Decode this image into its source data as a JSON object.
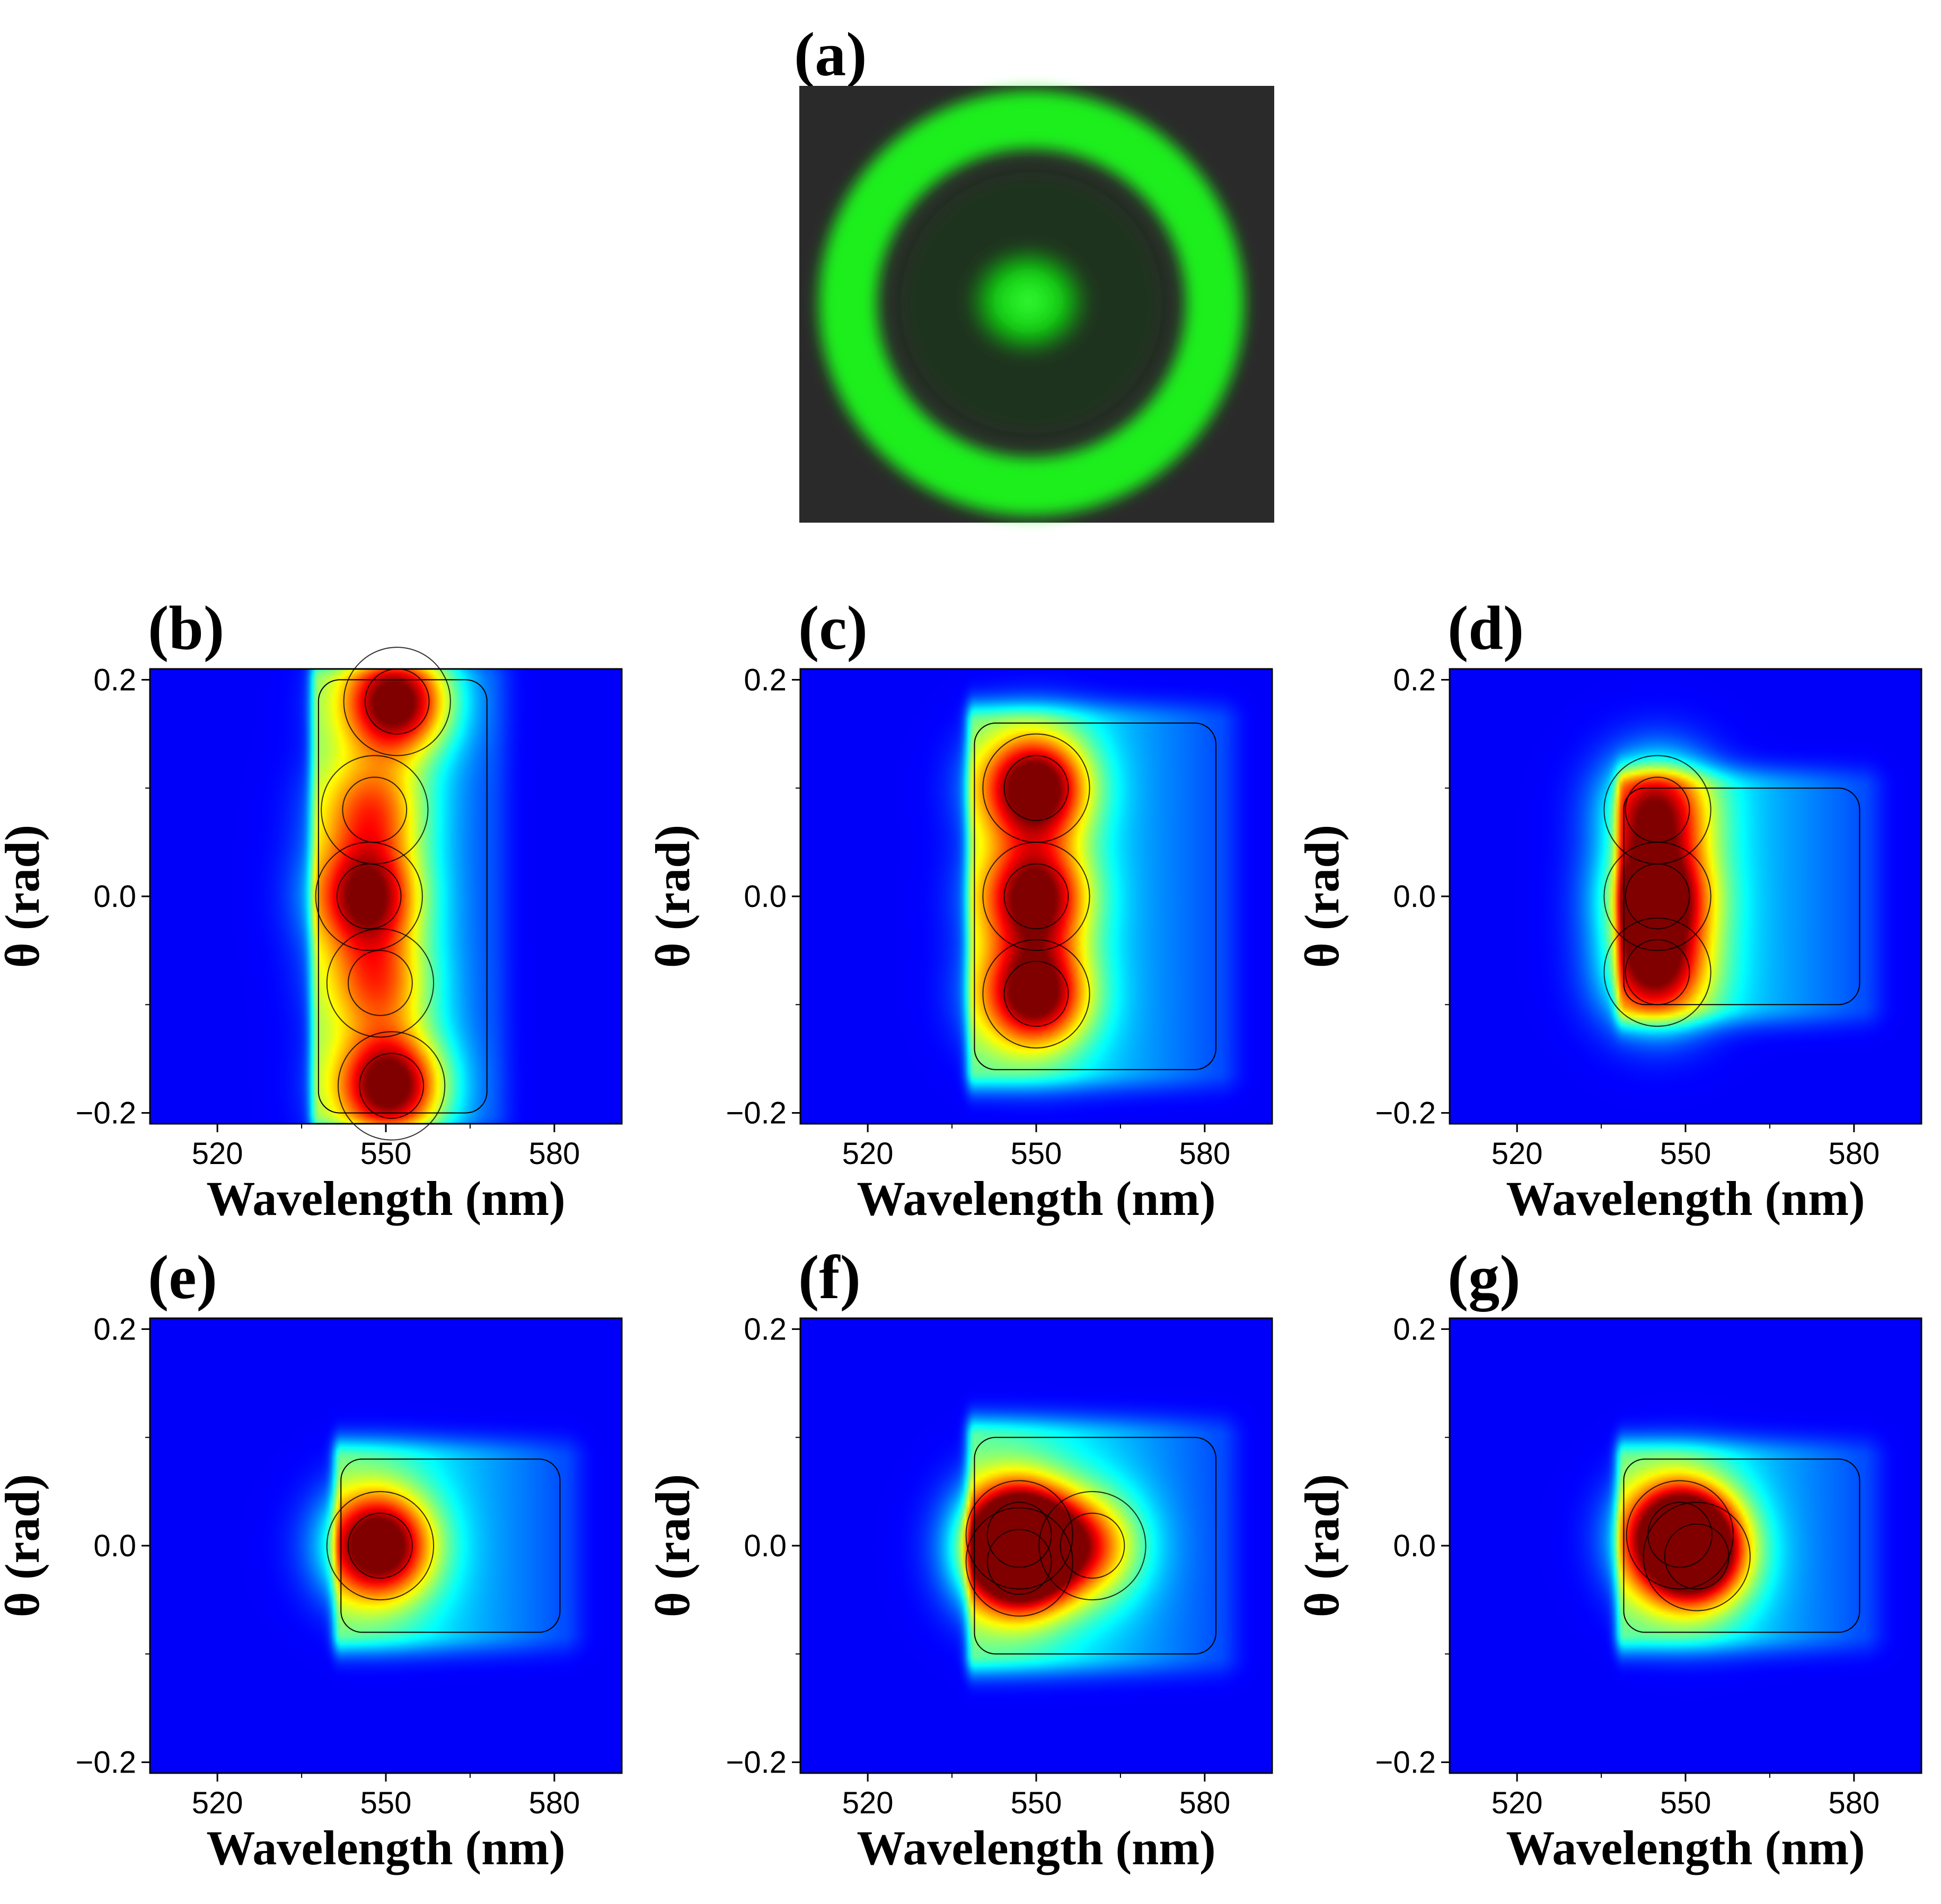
{
  "colors": {
    "map_background": "#0000ff",
    "peak": "#ff0000",
    "ring": "#11ee11",
    "photo_background": "#2a2a2a",
    "contour": "#000000"
  },
  "photo": {
    "label": "(a)",
    "content": "green ring and central spot on dark background"
  },
  "chart_data": [
    {
      "panel": "(b)",
      "type": "heatmap",
      "xlabel": "Wavelength (nm)",
      "ylabel": "θ (rad)",
      "xlim": [
        508,
        592
      ],
      "ylim": [
        -0.21,
        0.21
      ],
      "xticks": [
        "520",
        "550",
        "580"
      ],
      "yticks": [
        "0.2",
        "0.0",
        "−0.2"
      ],
      "lobes": [
        {
          "wl": 552,
          "theta": 0.18,
          "peak": 1.0
        },
        {
          "wl": 547,
          "theta": 0.0,
          "peak": 0.85
        },
        {
          "wl": 551,
          "theta": -0.175,
          "peak": 1.0
        },
        {
          "wl": 548,
          "theta": 0.08,
          "peak": 0.55
        },
        {
          "wl": 549,
          "theta": -0.08,
          "peak": 0.55
        }
      ],
      "envelope": {
        "wl_min": 538,
        "wl_max": 568,
        "theta_half_width": 0.2
      }
    },
    {
      "panel": "(c)",
      "type": "heatmap",
      "xlabel": "Wavelength (nm)",
      "ylabel": "θ (rad)",
      "xlim": [
        508,
        592
      ],
      "ylim": [
        -0.21,
        0.21
      ],
      "xticks": [
        "520",
        "550",
        "580"
      ],
      "yticks": [
        "0.2",
        "0.0",
        "−0.2"
      ],
      "lobes": [
        {
          "wl": 550,
          "theta": 0.1,
          "peak": 1.0
        },
        {
          "wl": 550,
          "theta": 0.0,
          "peak": 0.9
        },
        {
          "wl": 550,
          "theta": -0.09,
          "peak": 0.95
        }
      ],
      "envelope": {
        "wl_min": 539,
        "wl_max": 582,
        "theta_half_width": 0.16
      }
    },
    {
      "panel": "(d)",
      "type": "heatmap",
      "xlabel": "Wavelength (nm)",
      "ylabel": "θ (rad)",
      "xlim": [
        508,
        592
      ],
      "ylim": [
        -0.21,
        0.21
      ],
      "xticks": [
        "520",
        "550",
        "580"
      ],
      "yticks": [
        "0.2",
        "0.0",
        "−0.2"
      ],
      "lobes": [
        {
          "wl": 545,
          "theta": 0.0,
          "peak": 1.0
        },
        {
          "wl": 545,
          "theta": 0.08,
          "peak": 0.75
        },
        {
          "wl": 545,
          "theta": -0.07,
          "peak": 0.75
        }
      ],
      "envelope": {
        "wl_min": 539,
        "wl_max": 581,
        "theta_half_width": 0.1
      }
    },
    {
      "panel": "(e)",
      "type": "heatmap",
      "xlabel": "Wavelength (nm)",
      "ylabel": "θ (rad)",
      "xlim": [
        508,
        592
      ],
      "ylim": [
        -0.21,
        0.21
      ],
      "xticks": [
        "520",
        "550",
        "580"
      ],
      "yticks": [
        "0.2",
        "0.0",
        "−0.2"
      ],
      "lobes": [
        {
          "wl": 549,
          "theta": 0.0,
          "peak": 1.0
        }
      ],
      "envelope": {
        "wl_min": 542,
        "wl_max": 581,
        "theta_half_width": 0.08
      }
    },
    {
      "panel": "(f)",
      "type": "heatmap",
      "xlabel": "Wavelength (nm)",
      "ylabel": "θ (rad)",
      "xlim": [
        508,
        592
      ],
      "ylim": [
        -0.21,
        0.21
      ],
      "xticks": [
        "520",
        "550",
        "580"
      ],
      "yticks": [
        "0.2",
        "0.0",
        "−0.2"
      ],
      "lobes": [
        {
          "wl": 547,
          "theta": 0.01,
          "peak": 1.0
        },
        {
          "wl": 547,
          "theta": -0.015,
          "peak": 0.9
        },
        {
          "wl": 560,
          "theta": 0.0,
          "peak": 0.55
        }
      ],
      "envelope": {
        "wl_min": 539,
        "wl_max": 582,
        "theta_half_width": 0.1
      }
    },
    {
      "panel": "(g)",
      "type": "heatmap",
      "xlabel": "Wavelength (nm)",
      "ylabel": "θ (rad)",
      "xlim": [
        508,
        592
      ],
      "ylim": [
        -0.21,
        0.21
      ],
      "xticks": [
        "520",
        "550",
        "580"
      ],
      "yticks": [
        "0.2",
        "0.0",
        "−0.2"
      ],
      "lobes": [
        {
          "wl": 549,
          "theta": 0.01,
          "peak": 1.0
        },
        {
          "wl": 552,
          "theta": -0.01,
          "peak": 0.8
        }
      ],
      "envelope": {
        "wl_min": 539,
        "wl_max": 581,
        "theta_half_width": 0.08
      }
    }
  ]
}
